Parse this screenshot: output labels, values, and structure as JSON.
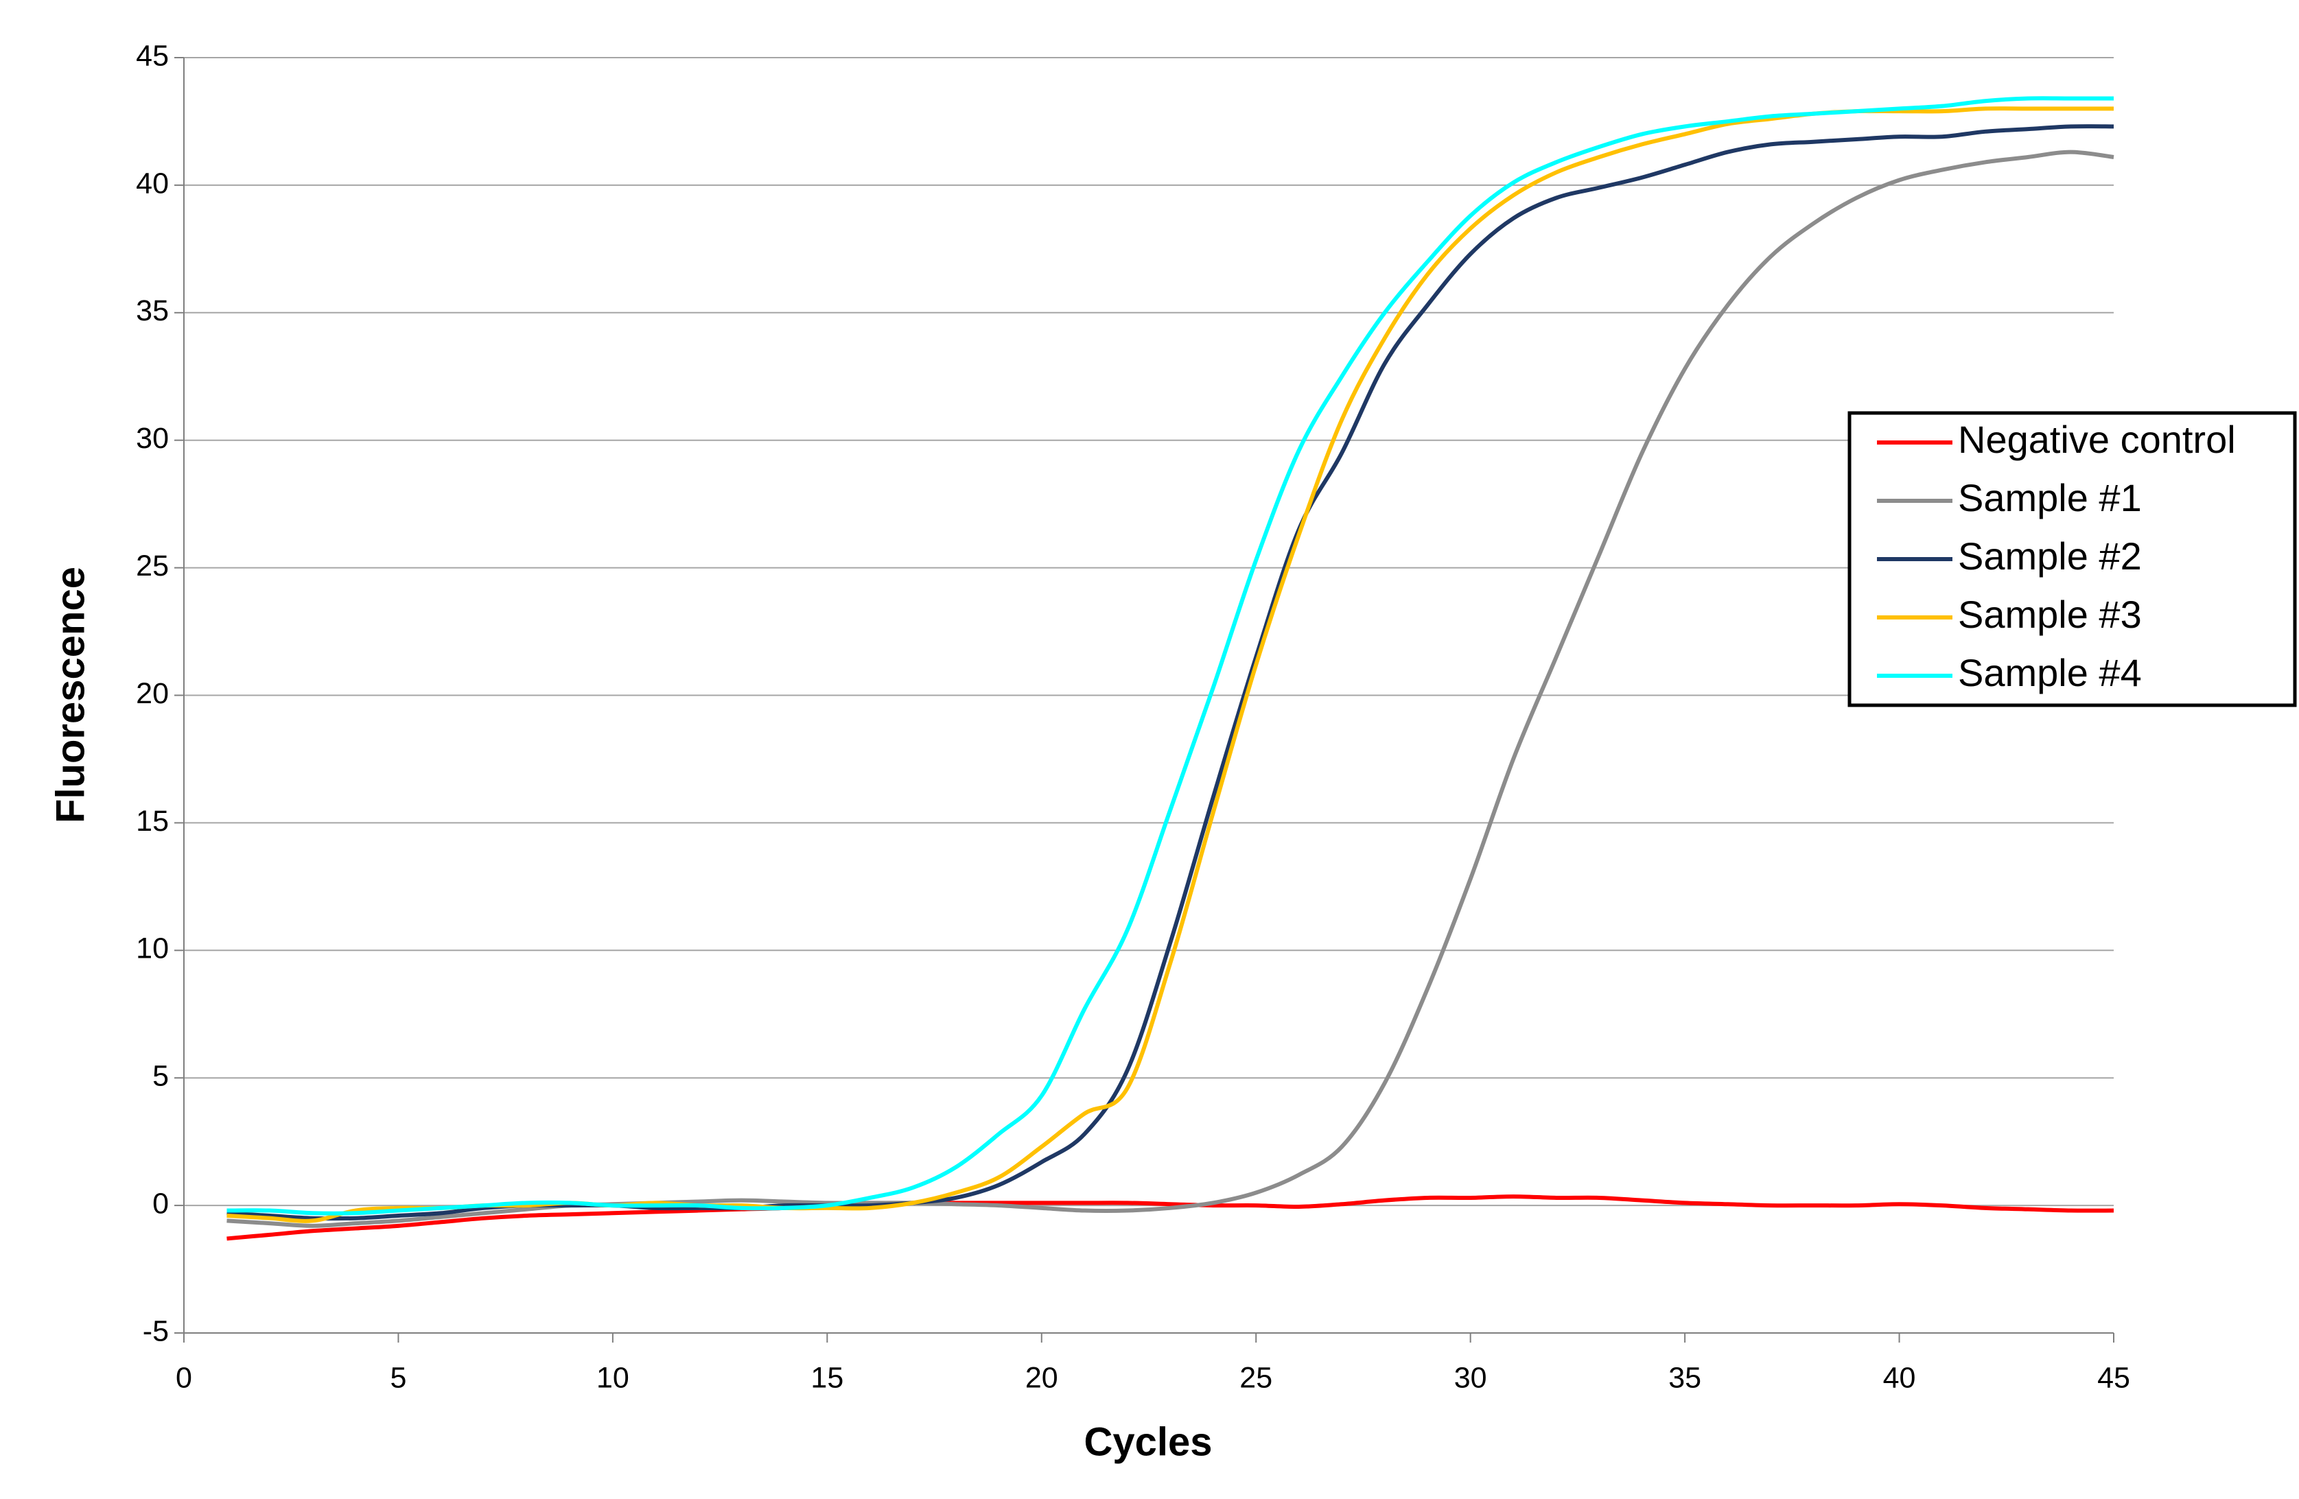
{
  "chart_data": {
    "type": "line",
    "xlabel": "Cycles",
    "ylabel": "Fluorescence",
    "x": [
      1,
      2,
      3,
      4,
      5,
      6,
      7,
      8,
      9,
      10,
      11,
      12,
      13,
      14,
      15,
      16,
      17,
      18,
      19,
      20,
      21,
      22,
      23,
      24,
      25,
      26,
      27,
      28,
      29,
      30,
      31,
      32,
      33,
      34,
      35,
      36,
      37,
      38,
      39,
      40,
      41,
      42,
      43,
      44,
      45
    ],
    "series": [
      {
        "name": "Negative control",
        "color": "#ff0000",
        "values": [
          -1.3,
          -1.15,
          -1.0,
          -0.9,
          -0.8,
          -0.65,
          -0.5,
          -0.4,
          -0.35,
          -0.3,
          -0.25,
          -0.2,
          -0.15,
          -0.1,
          0,
          0.05,
          0.1,
          0.1,
          0.1,
          0.1,
          0.1,
          0.1,
          0.05,
          0,
          0,
          -0.05,
          0.05,
          0.2,
          0.3,
          0.3,
          0.35,
          0.3,
          0.3,
          0.2,
          0.1,
          0.05,
          0,
          0,
          0,
          0.05,
          0,
          -0.1,
          -0.15,
          -0.2,
          -0.2
        ]
      },
      {
        "name": "Sample #1",
        "color": "#8c8c8c",
        "values": [
          -0.6,
          -0.7,
          -0.8,
          -0.7,
          -0.6,
          -0.45,
          -0.3,
          -0.15,
          0,
          0.05,
          0.1,
          0.15,
          0.2,
          0.15,
          0.1,
          0.1,
          0.1,
          0.05,
          0,
          -0.1,
          -0.2,
          -0.2,
          -0.1,
          0.1,
          0.5,
          1.2,
          2.3,
          4.8,
          8.5,
          12.8,
          17.5,
          21.5,
          25.5,
          29.5,
          32.8,
          35.3,
          37.2,
          38.5,
          39.5,
          40.2,
          40.6,
          40.9,
          41.1,
          41.3,
          41.1
        ]
      },
      {
        "name": "Sample #2",
        "color": "#1f3864",
        "values": [
          -0.3,
          -0.4,
          -0.5,
          -0.5,
          -0.4,
          -0.3,
          -0.1,
          0,
          0,
          0,
          -0.1,
          -0.1,
          -0.1,
          0,
          0,
          0,
          0.1,
          0.3,
          0.8,
          1.7,
          2.8,
          5.3,
          10.3,
          16,
          21.5,
          26.5,
          29.5,
          33,
          35.3,
          37.3,
          38.7,
          39.5,
          39.9,
          40.3,
          40.8,
          41.3,
          41.6,
          41.7,
          41.8,
          41.9,
          41.9,
          42.1,
          42.2,
          42.3,
          42.3
        ]
      },
      {
        "name": "Sample #3",
        "color": "#ffc000",
        "values": [
          -0.4,
          -0.5,
          -0.6,
          -0.2,
          -0.1,
          -0.1,
          0,
          0,
          0.1,
          0,
          0.1,
          0,
          0,
          -0.1,
          -0.1,
          -0.1,
          0.1,
          0.5,
          1.1,
          2.3,
          3.6,
          4.6,
          9.5,
          15.4,
          21.2,
          26.3,
          30.8,
          34,
          36.5,
          38.3,
          39.6,
          40.5,
          41.1,
          41.6,
          42,
          42.4,
          42.6,
          42.8,
          42.9,
          42.9,
          42.9,
          43,
          43,
          43,
          43
        ]
      },
      {
        "name": "Sample #4",
        "color": "#00ffff",
        "values": [
          -0.2,
          -0.2,
          -0.3,
          -0.3,
          -0.2,
          -0.1,
          0,
          0.1,
          0.1,
          0,
          0,
          0,
          -0.1,
          -0.1,
          0,
          0.3,
          0.7,
          1.5,
          2.8,
          4.3,
          7.7,
          10.8,
          15.5,
          20.3,
          25.3,
          29.6,
          32.5,
          35,
          37,
          38.8,
          40.1,
          40.9,
          41.5,
          42,
          42.3,
          42.5,
          42.7,
          42.8,
          42.9,
          43,
          43.1,
          43.3,
          43.4,
          43.4,
          43.4
        ]
      }
    ],
    "xlim": [
      0,
      45
    ],
    "xticks": [
      0,
      5,
      10,
      15,
      20,
      25,
      30,
      35,
      40,
      45
    ],
    "ylim": [
      -5,
      45
    ],
    "yticks": [
      -5,
      0,
      5,
      10,
      15,
      20,
      25,
      30,
      35,
      40,
      45
    ],
    "grid": true,
    "legend": "right"
  }
}
